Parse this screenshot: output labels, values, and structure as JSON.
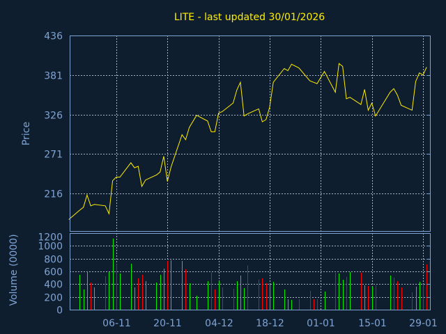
{
  "chart_data": [
    {
      "type": "line",
      "title": "LITE - last updated 30/01/2026",
      "ylabel": "Price",
      "ylim": [
        164,
        436
      ],
      "yticks": [
        216,
        271,
        326,
        381,
        436
      ],
      "grid": true,
      "line_color": "#ffee00",
      "points": [
        [
          "2025-10-24",
          180
        ],
        [
          "2025-10-27",
          193
        ],
        [
          "2025-10-28",
          197
        ],
        [
          "2025-10-29",
          214
        ],
        [
          "2025-10-30",
          199
        ],
        [
          "2025-10-31",
          201
        ],
        [
          "2025-11-03",
          199
        ],
        [
          "2025-11-04",
          188
        ],
        [
          "2025-11-05",
          234
        ],
        [
          "2025-11-06",
          239
        ],
        [
          "2025-11-07",
          239
        ],
        [
          "2025-11-10",
          259
        ],
        [
          "2025-11-11",
          252
        ],
        [
          "2025-11-12",
          254
        ],
        [
          "2025-11-13",
          226
        ],
        [
          "2025-11-14",
          235
        ],
        [
          "2025-11-17",
          242
        ],
        [
          "2025-11-18",
          246
        ],
        [
          "2025-11-19",
          268
        ],
        [
          "2025-11-20",
          233
        ],
        [
          "2025-11-21",
          253
        ],
        [
          "2025-11-24",
          298
        ],
        [
          "2025-11-25",
          291
        ],
        [
          "2025-11-26",
          308
        ],
        [
          "2025-11-28",
          325
        ],
        [
          "2025-12-01",
          317
        ],
        [
          "2025-12-02",
          302
        ],
        [
          "2025-12-03",
          302
        ],
        [
          "2025-12-04",
          328
        ],
        [
          "2025-12-05",
          330
        ],
        [
          "2025-12-08",
          342
        ],
        [
          "2025-12-09",
          360
        ],
        [
          "2025-12-10",
          371
        ],
        [
          "2025-12-11",
          324
        ],
        [
          "2025-12-12",
          327
        ],
        [
          "2025-12-15",
          334
        ],
        [
          "2025-12-16",
          316
        ],
        [
          "2025-12-17",
          319
        ],
        [
          "2025-12-18",
          336
        ],
        [
          "2025-12-19",
          371
        ],
        [
          "2025-12-22",
          390
        ],
        [
          "2025-12-23",
          387
        ],
        [
          "2025-12-24",
          396
        ],
        [
          "2025-12-26",
          391
        ],
        [
          "2025-12-29",
          373
        ],
        [
          "2025-12-30",
          371
        ],
        [
          "2025-12-31",
          369
        ],
        [
          "2026-01-02",
          386
        ],
        [
          "2026-01-05",
          357
        ],
        [
          "2026-01-06",
          397
        ],
        [
          "2026-01-07",
          393
        ],
        [
          "2026-01-08",
          348
        ],
        [
          "2026-01-09",
          350
        ],
        [
          "2026-01-12",
          340
        ],
        [
          "2026-01-13",
          361
        ],
        [
          "2026-01-14",
          332
        ],
        [
          "2026-01-15",
          342
        ],
        [
          "2026-01-16",
          324
        ],
        [
          "2026-01-20",
          357
        ],
        [
          "2026-01-21",
          362
        ],
        [
          "2026-01-22",
          353
        ],
        [
          "2026-01-23",
          339
        ],
        [
          "2026-01-26",
          332
        ],
        [
          "2026-01-27",
          372
        ],
        [
          "2026-01-28",
          384
        ],
        [
          "2026-01-29",
          381
        ],
        [
          "2026-01-30",
          392
        ]
      ]
    },
    {
      "type": "bar",
      "ylabel": "Volume (0000)",
      "ylim": [
        0,
        1200
      ],
      "yticks": [
        0,
        200,
        400,
        600,
        800,
        1000,
        1200
      ],
      "grid": true,
      "xticks": [
        [
          "2025-11-06",
          "06-11"
        ],
        [
          "2025-11-20",
          "20-11"
        ],
        [
          "2025-12-04",
          "04-12"
        ],
        [
          "2025-12-18",
          "18-12"
        ],
        [
          "2026-01-01",
          "01-01"
        ],
        [
          "2026-01-15",
          "15-01"
        ],
        [
          "2026-01-29",
          "29-01"
        ]
      ],
      "colors": {
        "up": "#00ee00",
        "down": "#ff0000"
      },
      "bars": [
        [
          "2025-10-27",
          545,
          "up"
        ],
        [
          "2025-10-28",
          316,
          "up"
        ],
        [
          "2025-10-29",
          600,
          "up"
        ],
        [
          "2025-10-30",
          425,
          "down"
        ],
        [
          "2025-10-31",
          349,
          "up"
        ],
        [
          "2025-11-03",
          524,
          "down"
        ],
        [
          "2025-11-04",
          589,
          "up"
        ],
        [
          "2025-11-05",
          1116,
          "up"
        ],
        [
          "2025-11-06",
          716,
          "down"
        ],
        [
          "2025-11-07",
          567,
          "up"
        ],
        [
          "2025-11-10",
          720,
          "up"
        ],
        [
          "2025-11-11",
          349,
          "up"
        ],
        [
          "2025-11-12",
          491,
          "down"
        ],
        [
          "2025-11-13",
          545,
          "down"
        ],
        [
          "2025-11-14",
          447,
          "up"
        ],
        [
          "2025-11-17",
          425,
          "up"
        ],
        [
          "2025-11-18",
          545,
          "up"
        ],
        [
          "2025-11-19",
          644,
          "up"
        ],
        [
          "2025-11-20",
          764,
          "down"
        ],
        [
          "2025-11-21",
          775,
          "up"
        ],
        [
          "2025-11-24",
          764,
          "up"
        ],
        [
          "2025-11-25",
          633,
          "down"
        ],
        [
          "2025-11-26",
          415,
          "up"
        ],
        [
          "2025-11-28",
          218,
          "up"
        ],
        [
          "2025-12-01",
          447,
          "up"
        ],
        [
          "2025-12-02",
          582,
          "down"
        ],
        [
          "2025-12-03",
          316,
          "down"
        ],
        [
          "2025-12-04",
          447,
          "up"
        ],
        [
          "2025-12-05",
          349,
          "down"
        ],
        [
          "2025-12-08",
          327,
          "down"
        ],
        [
          "2025-12-09",
          447,
          "up"
        ],
        [
          "2025-12-10",
          535,
          "up"
        ],
        [
          "2025-12-11",
          338,
          "up"
        ],
        [
          "2025-12-12",
          691,
          "down"
        ],
        [
          "2025-12-15",
          473,
          "down"
        ],
        [
          "2025-12-16",
          491,
          "down"
        ],
        [
          "2025-12-17",
          415,
          "down"
        ],
        [
          "2025-12-18",
          400,
          "up"
        ],
        [
          "2025-12-19",
          436,
          "up"
        ],
        [
          "2025-12-22",
          316,
          "up"
        ],
        [
          "2025-12-23",
          164,
          "up"
        ],
        [
          "2025-12-24",
          153,
          "up"
        ],
        [
          "2025-12-26",
          164,
          "down"
        ],
        [
          "2025-12-29",
          295,
          "down"
        ],
        [
          "2025-12-30",
          164,
          "down"
        ],
        [
          "2025-12-31",
          164,
          "down"
        ],
        [
          "2026-01-02",
          284,
          "up"
        ],
        [
          "2026-01-05",
          575,
          "down"
        ],
        [
          "2026-01-06",
          567,
          "up"
        ],
        [
          "2026-01-07",
          469,
          "up"
        ],
        [
          "2026-01-08",
          513,
          "down"
        ],
        [
          "2026-01-09",
          589,
          "up"
        ],
        [
          "2026-01-12",
          582,
          "down"
        ],
        [
          "2026-01-13",
          382,
          "up"
        ],
        [
          "2026-01-14",
          371,
          "down"
        ],
        [
          "2026-01-15",
          360,
          "up"
        ],
        [
          "2026-01-16",
          382,
          "down"
        ],
        [
          "2026-01-20",
          535,
          "up"
        ],
        [
          "2026-01-21",
          502,
          "down"
        ],
        [
          "2026-01-22",
          447,
          "down"
        ],
        [
          "2026-01-23",
          349,
          "down"
        ],
        [
          "2026-01-26",
          273,
          "down"
        ],
        [
          "2026-01-27",
          360,
          "up"
        ],
        [
          "2026-01-28",
          436,
          "up"
        ],
        [
          "2026-01-29",
          400,
          "down"
        ],
        [
          "2026-01-30",
          709,
          "down"
        ]
      ]
    }
  ]
}
